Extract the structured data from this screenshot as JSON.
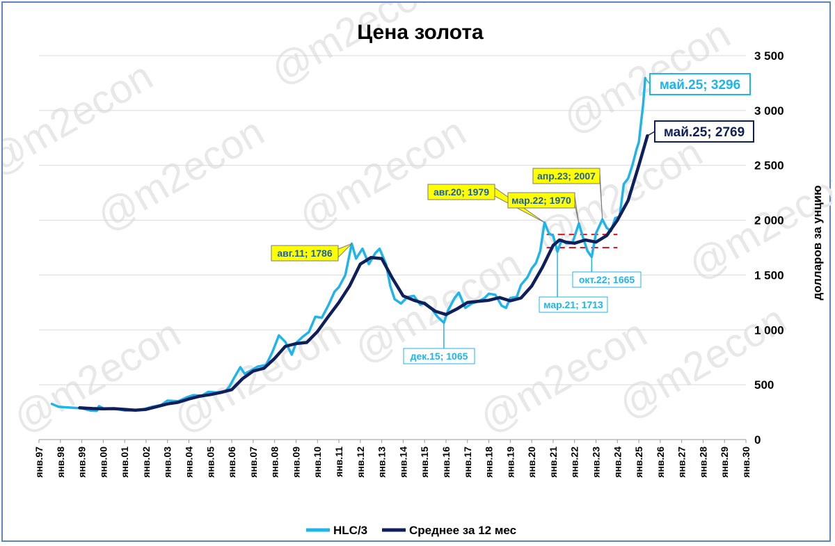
{
  "chart_data": {
    "type": "line",
    "title": "Цена золота",
    "ylabel": "долларов за унцию",
    "xlabel": "",
    "ylim": [
      0,
      3500
    ],
    "y_ticks": [
      0,
      500,
      1000,
      1500,
      2000,
      2500,
      3000,
      3500
    ],
    "y_tick_labels": [
      "0",
      "500",
      "1 000",
      "1 500",
      "2 000",
      "2 500",
      "3 000",
      "3 500"
    ],
    "x_ticks": [
      "янв.97",
      "янв.98",
      "янв.99",
      "янв.00",
      "янв.01",
      "янв.02",
      "янв.03",
      "янв.04",
      "янв.05",
      "янв.06",
      "янв.07",
      "янв.08",
      "янв.09",
      "янв.10",
      "янв.11",
      "янв.12",
      "янв.13",
      "янв.14",
      "янв.15",
      "янв.16",
      "янв.17",
      "янв.18",
      "янв.19",
      "янв.20",
      "янв.21",
      "янв.22",
      "янв.23",
      "янв.24",
      "янв.25",
      "янв.26",
      "янв.27",
      "янв.28",
      "янв.29",
      "янв.30"
    ],
    "xlim": [
      1997.0,
      2030.0
    ],
    "grid": "horizontal",
    "legend_position": "bottom",
    "series": [
      {
        "name": "HLC/3",
        "color": "#1fb4ea",
        "points": [
          [
            1997.6,
            325
          ],
          [
            1997.9,
            300
          ],
          [
            1998.2,
            295
          ],
          [
            1998.6,
            290
          ],
          [
            1999.0,
            285
          ],
          [
            1999.4,
            265
          ],
          [
            1999.7,
            262
          ],
          [
            1999.8,
            305
          ],
          [
            2000.0,
            285
          ],
          [
            2000.3,
            283
          ],
          [
            2000.6,
            280
          ],
          [
            2001.0,
            265
          ],
          [
            2001.5,
            268
          ],
          [
            2001.9,
            278
          ],
          [
            2002.3,
            300
          ],
          [
            2002.7,
            315
          ],
          [
            2003.0,
            355
          ],
          [
            2003.5,
            350
          ],
          [
            2003.9,
            385
          ],
          [
            2004.2,
            405
          ],
          [
            2004.6,
            400
          ],
          [
            2004.9,
            435
          ],
          [
            2005.3,
            430
          ],
          [
            2005.7,
            440
          ],
          [
            2005.9,
            485
          ],
          [
            2006.1,
            560
          ],
          [
            2006.4,
            660
          ],
          [
            2006.6,
            600
          ],
          [
            2006.9,
            630
          ],
          [
            2007.2,
            665
          ],
          [
            2007.6,
            680
          ],
          [
            2007.9,
            800
          ],
          [
            2008.2,
            950
          ],
          [
            2008.5,
            890
          ],
          [
            2008.8,
            775
          ],
          [
            2009.0,
            880
          ],
          [
            2009.3,
            935
          ],
          [
            2009.6,
            980
          ],
          [
            2009.9,
            1120
          ],
          [
            2010.2,
            1110
          ],
          [
            2010.5,
            1220
          ],
          [
            2010.8,
            1350
          ],
          [
            2011.0,
            1390
          ],
          [
            2011.3,
            1500
          ],
          [
            2011.6,
            1786
          ],
          [
            2011.8,
            1650
          ],
          [
            2012.1,
            1740
          ],
          [
            2012.4,
            1600
          ],
          [
            2012.7,
            1700
          ],
          [
            2012.9,
            1740
          ],
          [
            2013.2,
            1600
          ],
          [
            2013.4,
            1400
          ],
          [
            2013.6,
            1280
          ],
          [
            2013.9,
            1240
          ],
          [
            2014.2,
            1300
          ],
          [
            2014.5,
            1310
          ],
          [
            2014.8,
            1230
          ],
          [
            2015.0,
            1250
          ],
          [
            2015.3,
            1200
          ],
          [
            2015.6,
            1120
          ],
          [
            2015.9,
            1065
          ],
          [
            2016.1,
            1180
          ],
          [
            2016.4,
            1290
          ],
          [
            2016.6,
            1340
          ],
          [
            2016.9,
            1200
          ],
          [
            2017.2,
            1240
          ],
          [
            2017.5,
            1260
          ],
          [
            2017.8,
            1290
          ],
          [
            2018.0,
            1330
          ],
          [
            2018.3,
            1320
          ],
          [
            2018.6,
            1220
          ],
          [
            2018.8,
            1200
          ],
          [
            2019.0,
            1290
          ],
          [
            2019.3,
            1300
          ],
          [
            2019.5,
            1410
          ],
          [
            2019.8,
            1480
          ],
          [
            2020.0,
            1560
          ],
          [
            2020.2,
            1610
          ],
          [
            2020.4,
            1720
          ],
          [
            2020.6,
            1979
          ],
          [
            2020.8,
            1880
          ],
          [
            2021.0,
            1860
          ],
          [
            2021.2,
            1713
          ],
          [
            2021.4,
            1820
          ],
          [
            2021.6,
            1790
          ],
          [
            2021.9,
            1790
          ],
          [
            2022.2,
            1970
          ],
          [
            2022.4,
            1840
          ],
          [
            2022.6,
            1720
          ],
          [
            2022.8,
            1665
          ],
          [
            2023.0,
            1880
          ],
          [
            2023.3,
            2007
          ],
          [
            2023.5,
            1930
          ],
          [
            2023.7,
            1900
          ],
          [
            2023.9,
            2020
          ],
          [
            2024.1,
            2030
          ],
          [
            2024.3,
            2330
          ],
          [
            2024.5,
            2380
          ],
          [
            2024.7,
            2500
          ],
          [
            2024.9,
            2650
          ],
          [
            2025.0,
            2710
          ],
          [
            2025.1,
            2880
          ],
          [
            2025.2,
            3050
          ],
          [
            2025.3,
            3296
          ]
        ]
      },
      {
        "name": "Среднее за 12 мес",
        "color": "#0e1f5b",
        "points": [
          [
            1998.9,
            290
          ],
          [
            1999.5,
            283
          ],
          [
            2000.0,
            280
          ],
          [
            2000.5,
            282
          ],
          [
            2001.0,
            275
          ],
          [
            2001.5,
            268
          ],
          [
            2002.0,
            275
          ],
          [
            2002.5,
            300
          ],
          [
            2003.0,
            325
          ],
          [
            2003.5,
            340
          ],
          [
            2004.0,
            370
          ],
          [
            2004.5,
            395
          ],
          [
            2005.0,
            410
          ],
          [
            2005.5,
            430
          ],
          [
            2006.0,
            455
          ],
          [
            2006.5,
            555
          ],
          [
            2007.0,
            625
          ],
          [
            2007.5,
            650
          ],
          [
            2008.0,
            740
          ],
          [
            2008.5,
            850
          ],
          [
            2009.0,
            875
          ],
          [
            2009.5,
            885
          ],
          [
            2010.0,
            985
          ],
          [
            2010.5,
            1120
          ],
          [
            2011.0,
            1250
          ],
          [
            2011.5,
            1400
          ],
          [
            2012.0,
            1600
          ],
          [
            2012.5,
            1660
          ],
          [
            2013.0,
            1650
          ],
          [
            2013.5,
            1470
          ],
          [
            2014.0,
            1310
          ],
          [
            2014.5,
            1270
          ],
          [
            2015.0,
            1240
          ],
          [
            2015.5,
            1170
          ],
          [
            2016.0,
            1140
          ],
          [
            2016.5,
            1190
          ],
          [
            2017.0,
            1250
          ],
          [
            2017.5,
            1260
          ],
          [
            2018.0,
            1270
          ],
          [
            2018.5,
            1295
          ],
          [
            2019.0,
            1265
          ],
          [
            2019.5,
            1290
          ],
          [
            2020.0,
            1400
          ],
          [
            2020.5,
            1570
          ],
          [
            2021.0,
            1770
          ],
          [
            2021.3,
            1820
          ],
          [
            2021.6,
            1800
          ],
          [
            2022.0,
            1790
          ],
          [
            2022.5,
            1820
          ],
          [
            2023.0,
            1800
          ],
          [
            2023.5,
            1860
          ],
          [
            2024.0,
            2000
          ],
          [
            2024.5,
            2180
          ],
          [
            2025.0,
            2500
          ],
          [
            2025.4,
            2769
          ]
        ]
      }
    ],
    "annotations": [
      {
        "label": "авг.11; 1786",
        "x": 2011.6,
        "y": 1786,
        "style": "yellow"
      },
      {
        "label": "авг.20; 1979",
        "x": 2020.6,
        "y": 1979,
        "style": "yellow"
      },
      {
        "label": "мар.22; 1970",
        "x": 2022.2,
        "y": 1970,
        "style": "yellow"
      },
      {
        "label": "апр.23; 2007",
        "x": 2023.3,
        "y": 2007,
        "style": "yellow"
      },
      {
        "label": "дек.15; 1065",
        "x": 2015.9,
        "y": 1065,
        "style": "outline"
      },
      {
        "label": "мар.21; 1713",
        "x": 2021.2,
        "y": 1713,
        "style": "outline"
      },
      {
        "label": "окт.22; 1665",
        "x": 2022.8,
        "y": 1665,
        "style": "outline"
      },
      {
        "label": "май.25; 3296",
        "x": 2025.3,
        "y": 3296,
        "style": "big-light"
      },
      {
        "label": "май.25; 2769",
        "x": 2025.4,
        "y": 2769,
        "style": "big-dark"
      }
    ],
    "reference_lines": [
      {
        "y": 1870,
        "x_from": 2020.7,
        "x_to": 2024.0,
        "color": "#e1141c",
        "dash": true
      },
      {
        "y": 1750,
        "x_from": 2020.7,
        "x_to": 2024.0,
        "color": "#e1141c",
        "dash": true
      }
    ]
  },
  "watermark": "@m2econ"
}
